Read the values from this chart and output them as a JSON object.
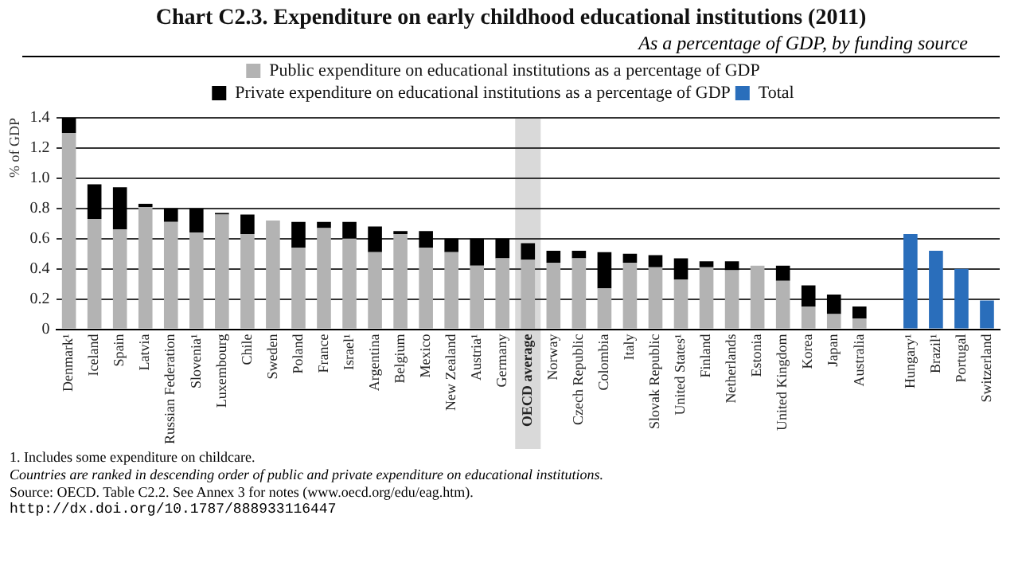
{
  "chart_data": {
    "type": "bar",
    "title": "Chart C2.3.  Expenditure on early childhood educational institutions (2011)",
    "subtitle": "As a percentage of GDP, by funding source",
    "ylabel": "% of GDP",
    "categories": [
      "Denmark¹",
      "Iceland",
      "Spain",
      "Latvia",
      "Russian Federation",
      "Slovenia¹",
      "Luxembourg",
      "Chile",
      "Sweden",
      "Poland",
      "France",
      "Israel¹",
      "Argentina",
      "Belgium",
      "Mexico",
      "New Zealand",
      "Austria¹",
      "Germany",
      "OECD average",
      "Norway",
      "Czech Republic",
      "Colombia",
      "Italy",
      "Slovak Republic",
      "United States¹",
      "Finland",
      "Netherlands",
      "Estonia",
      "United Kingdom",
      "Korea",
      "Japan",
      "Australia",
      null,
      "Hungary¹",
      "Brazil¹",
      "Portugal",
      "Switzerland"
    ],
    "stacked": true,
    "series": [
      {
        "name": "Public expenditure on educational institutions as a percentage of GDP",
        "color": "#b3b3b3",
        "values": [
          1.3,
          0.73,
          0.66,
          0.81,
          0.71,
          0.64,
          0.76,
          0.63,
          0.72,
          0.54,
          0.67,
          0.6,
          0.51,
          0.63,
          0.54,
          0.51,
          0.42,
          0.47,
          0.46,
          0.44,
          0.47,
          0.27,
          0.44,
          0.41,
          0.33,
          0.41,
          0.39,
          0.42,
          0.32,
          0.15,
          0.1,
          0.07,
          null,
          null,
          null,
          null,
          null
        ]
      },
      {
        "name": "Private expenditure on educational institutions as a percentage of GDP",
        "color": "#000000",
        "values": [
          0.1,
          0.23,
          0.28,
          0.02,
          0.09,
          0.16,
          0.01,
          0.13,
          0,
          0.17,
          0.04,
          0.11,
          0.17,
          0.02,
          0.11,
          0.09,
          0.18,
          0.13,
          0.11,
          0.08,
          0.05,
          0.24,
          0.06,
          0.08,
          0.14,
          0.04,
          0.06,
          0,
          0.1,
          0.14,
          0.13,
          0.08,
          null,
          null,
          null,
          null,
          null
        ]
      },
      {
        "name": "Total",
        "color": "#2a6ebb",
        "values": [
          null,
          null,
          null,
          null,
          null,
          null,
          null,
          null,
          null,
          null,
          null,
          null,
          null,
          null,
          null,
          null,
          null,
          null,
          null,
          null,
          null,
          null,
          null,
          null,
          null,
          null,
          null,
          null,
          null,
          null,
          null,
          null,
          null,
          0.63,
          0.52,
          0.4,
          0.19
        ]
      }
    ],
    "ylim": [
      0,
      1.4
    ],
    "yticks": [
      0,
      0.2,
      0.4,
      0.6,
      0.8,
      {
        "value": 1,
        "label": "1.0"
      },
      1.2,
      1.4
    ],
    "grid": "y",
    "legend": "top",
    "bands": [
      {
        "axis": "x",
        "from": "OECD average",
        "to": "OECD average",
        "color": "#d9d9d9"
      }
    ],
    "annotations": [
      "1. Includes some expenditure on childcare.",
      "Countries are ranked in descending order of public and private expenditure on educational institutions.",
      "Source: OECD. Table C2.2. See Annex 3 for notes (www.oecd.org/edu/eag.htm).",
      "http://dx.doi.org/10.1787/888933116447"
    ]
  }
}
